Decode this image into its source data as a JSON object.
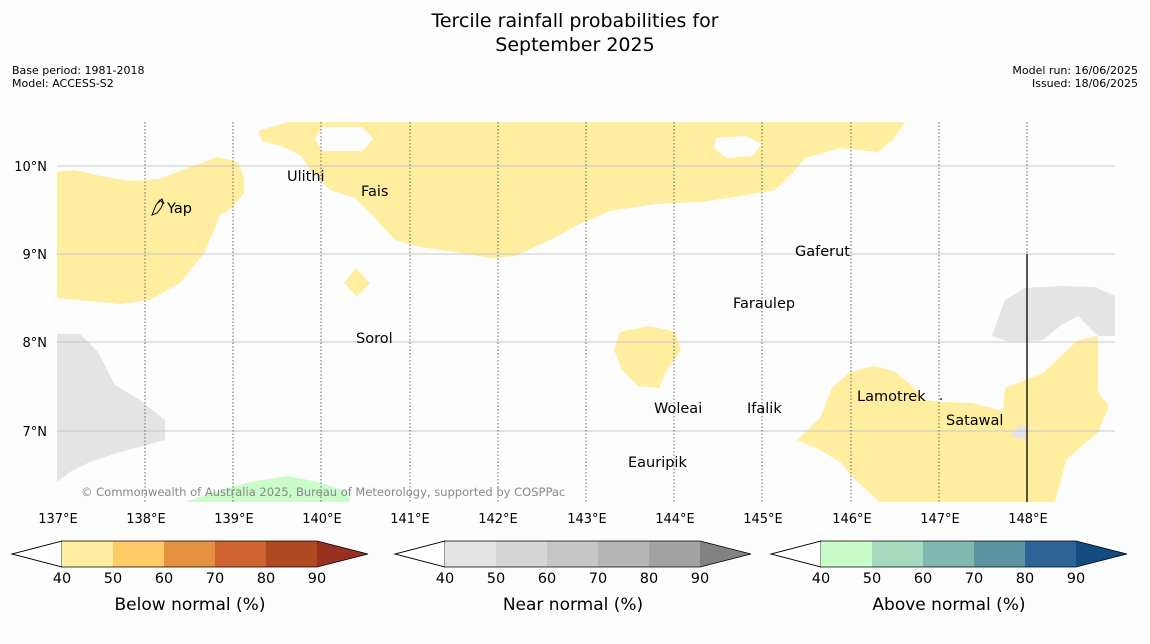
{
  "header": {
    "title_line1": "Tercile rainfall probabilities for",
    "title_line2": "September 2025",
    "base_period": "Base period: 1981-2018",
    "model": "Model: ACCESS-S2",
    "model_run": "Model run: 16/06/2025",
    "issued": "Issued: 18/06/2025"
  },
  "map": {
    "lon_labels": [
      "137°E",
      "138°E",
      "139°E",
      "140°E",
      "141°E",
      "142°E",
      "143°E",
      "144°E",
      "145°E",
      "146°E",
      "147°E",
      "148°E"
    ],
    "lat_labels": [
      "10°N",
      "9°N",
      "8°N",
      "7°N"
    ],
    "places": [
      {
        "name": "Yap",
        "lon": 138.25,
        "lat": 9.5
      },
      {
        "name": "Ulithi",
        "lon": 139.72,
        "lat": 9.88
      },
      {
        "name": "Fais",
        "lon": 140.5,
        "lat": 9.72
      },
      {
        "name": "Gaferut",
        "lon": 145.38,
        "lat": 9.02
      },
      {
        "name": "Faraulep",
        "lon": 144.6,
        "lat": 8.43
      },
      {
        "name": "Sorol",
        "lon": 140.39,
        "lat": 8.03
      },
      {
        "name": "Lamotrek",
        "lon": 146.05,
        "lat": 7.38
      },
      {
        "name": "Woleai",
        "lon": 143.9,
        "lat": 7.27
      },
      {
        "name": "Ifalik",
        "lon": 144.45,
        "lat": 7.27
      },
      {
        "name": "Satawal",
        "lon": 147.03,
        "lat": 7.13
      },
      {
        "name": "Eauripik",
        "lon": 143.05,
        "lat": 6.65
      }
    ],
    "copyright": "© Commonwealth of Australia 2025, Bureau of Meteorology, supported by COSPPac",
    "colors": {
      "below_40": "#ffeda0",
      "near_40": "#e4e4e4",
      "above_40": "#c9fcc9"
    }
  },
  "colorbars": [
    {
      "title": "Below normal (%)",
      "ticks": [
        "40",
        "50",
        "60",
        "70",
        "80",
        "90"
      ],
      "colors": [
        "#ffffff",
        "#ffeda0",
        "#fecb66",
        "#e49140",
        "#ce632f",
        "#b04922",
        "#983120"
      ]
    },
    {
      "title": "Near normal (%)",
      "ticks": [
        "40",
        "50",
        "60",
        "70",
        "80",
        "90"
      ],
      "colors": [
        "#ffffff",
        "#e4e4e4",
        "#d5d5d5",
        "#c6c6c6",
        "#b5b5b5",
        "#a3a3a3",
        "#828282"
      ]
    },
    {
      "title": "Above normal (%)",
      "ticks": [
        "40",
        "50",
        "60",
        "70",
        "80",
        "90"
      ],
      "colors": [
        "#ffffff",
        "#c9fcc9",
        "#a6d9bd",
        "#80b8b0",
        "#5a94a0",
        "#2f6496",
        "#134c80"
      ]
    }
  ]
}
